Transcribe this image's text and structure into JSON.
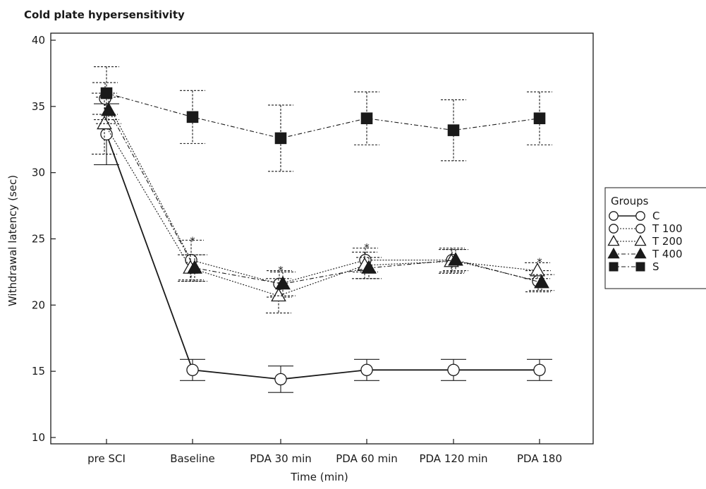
{
  "chart_data": {
    "type": "line",
    "title": "Cold plate hypersensitivity",
    "xlabel": "Time (min)",
    "ylabel": "Withdrawal latency (sec)",
    "categories": [
      "pre SCI",
      "Baseline",
      "PDA 30 min",
      "PDA 60 min",
      "PDA 120 min",
      "PDA 180"
    ],
    "ylim": [
      10,
      40
    ],
    "yticks": [
      10,
      15,
      20,
      25,
      30,
      35,
      40
    ],
    "grid": false,
    "legend_position": "right",
    "legend_title": "Groups",
    "series": [
      {
        "name": "C",
        "marker": "open-circle",
        "line": "solid",
        "values": [
          32.9,
          15.1,
          14.4,
          15.1,
          15.1,
          15.1
        ],
        "error": [
          2.3,
          0.8,
          1.0,
          0.8,
          0.8,
          0.8
        ]
      },
      {
        "name": "T 100",
        "marker": "open-circle",
        "line": "dotted",
        "values": [
          35.6,
          23.4,
          21.6,
          23.4,
          23.4,
          21.8
        ],
        "error": [
          1.2,
          1.5,
          1.0,
          0.9,
          0.9,
          0.8
        ]
      },
      {
        "name": "T 200",
        "marker": "open-triangle",
        "line": "dotted",
        "values": [
          33.7,
          22.8,
          20.7,
          23.0,
          23.3,
          22.6
        ],
        "error": [
          2.3,
          1.0,
          1.3,
          1.0,
          0.9,
          0.6
        ]
      },
      {
        "name": "T 400",
        "marker": "filled-triangle",
        "line": "dash-dot",
        "values": [
          34.7,
          22.8,
          21.6,
          22.8,
          23.4,
          21.7
        ],
        "error": [
          1.0,
          1.0,
          0.9,
          0.8,
          0.8,
          0.6
        ]
      },
      {
        "name": "S",
        "marker": "filled-square",
        "line": "dash-dot",
        "values": [
          36.0,
          34.2,
          32.6,
          34.1,
          33.2,
          34.1
        ],
        "error": [
          2.0,
          2.0,
          2.5,
          2.0,
          2.3,
          2.0
        ]
      }
    ],
    "annotations": [
      {
        "text": "*",
        "category": "Baseline",
        "y": 25.0
      },
      {
        "text": "*",
        "category": "PDA 30 min",
        "y": 22.8
      },
      {
        "text": "*",
        "category": "PDA 60 min",
        "y": 24.5
      },
      {
        "text": "*",
        "category": "PDA 180",
        "y": 23.4
      }
    ]
  }
}
